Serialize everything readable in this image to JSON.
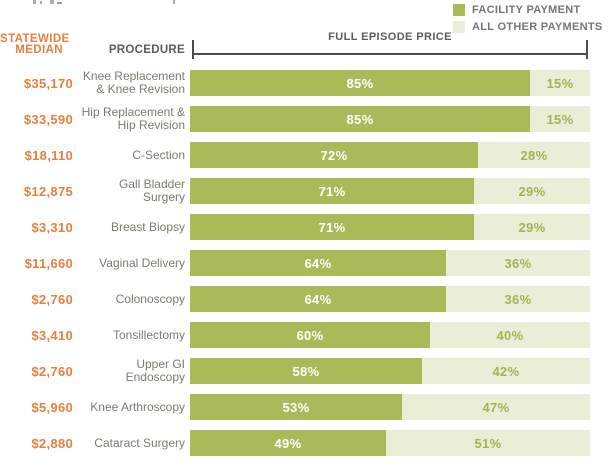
{
  "legend": {
    "items": [
      {
        "label": "FACILITY PAYMENT",
        "color_key": "facility"
      },
      {
        "label": "ALL OTHER PAYMENTS",
        "color_key": "other"
      }
    ]
  },
  "header": {
    "statewide_median_line1": "STATEWIDE",
    "statewide_median_line2": "MEDIAN",
    "procedure": "PROCEDURE",
    "full_episode_price": "FULL EPISODE PRICE"
  },
  "colors": {
    "facility": "#abba58",
    "other": "#ebeed6",
    "accent_orange": "#e58140",
    "row_text_gray": "#7c7b72",
    "header_gray": "#5b5c60",
    "axis_line": "#4c4c50",
    "facility_pct_text": "#ffffff",
    "other_pct_text": "#a3b255"
  },
  "chart_data": {
    "type": "bar",
    "orientation": "horizontal",
    "stacked": true,
    "series_names": [
      "FACILITY PAYMENT",
      "ALL OTHER PAYMENTS"
    ],
    "x_axis_label": "FULL EPISODE PRICE",
    "value_format": "percent",
    "xlim": [
      0,
      100
    ],
    "rows": [
      {
        "statewide_median": "$35,170",
        "procedure": "Knee Replacement & Knee Revision",
        "procedure_lines": [
          "Knee Replacement",
          "& Knee Revision"
        ],
        "facility_pct": 85,
        "other_pct": 15
      },
      {
        "statewide_median": "$33,590",
        "procedure": "Hip Replacement & Hip Revision",
        "procedure_lines": [
          "Hip Replacement &",
          "Hip Revision"
        ],
        "facility_pct": 85,
        "other_pct": 15
      },
      {
        "statewide_median": "$18,110",
        "procedure": "C-Section",
        "procedure_lines": [
          "C-Section"
        ],
        "facility_pct": 72,
        "other_pct": 28
      },
      {
        "statewide_median": "$12,875",
        "procedure": "Gall Bladder Surgery",
        "procedure_lines": [
          "Gall Bladder",
          "Surgery"
        ],
        "facility_pct": 71,
        "other_pct": 29
      },
      {
        "statewide_median": "$3,310",
        "procedure": "Breast Biopsy",
        "procedure_lines": [
          "Breast Biopsy"
        ],
        "facility_pct": 71,
        "other_pct": 29
      },
      {
        "statewide_median": "$11,660",
        "procedure": "Vaginal Delivery",
        "procedure_lines": [
          "Vaginal Delivery"
        ],
        "facility_pct": 64,
        "other_pct": 36
      },
      {
        "statewide_median": "$2,760",
        "procedure": "Colonoscopy",
        "procedure_lines": [
          "Colonoscopy"
        ],
        "facility_pct": 64,
        "other_pct": 36
      },
      {
        "statewide_median": "$3,410",
        "procedure": "Tonsillectomy",
        "procedure_lines": [
          "Tonsillectomy"
        ],
        "facility_pct": 60,
        "other_pct": 40
      },
      {
        "statewide_median": "$2,760",
        "procedure": "Upper GI Endoscopy",
        "procedure_lines": [
          "Upper GI",
          "Endoscopy"
        ],
        "facility_pct": 58,
        "other_pct": 42
      },
      {
        "statewide_median": "$5,960",
        "procedure": "Knee Arthroscopy",
        "procedure_lines": [
          "Knee Arthroscopy"
        ],
        "facility_pct": 53,
        "other_pct": 47
      },
      {
        "statewide_median": "$2,880",
        "procedure": "Cataract Surgery",
        "procedure_lines": [
          "Cataract Surgery"
        ],
        "facility_pct": 49,
        "other_pct": 51
      }
    ]
  }
}
